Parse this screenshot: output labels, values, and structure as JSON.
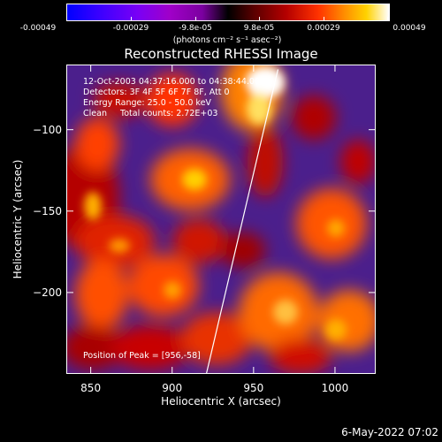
{
  "colorbar": {
    "ticks": [
      "-0.00049",
      "-0.00029",
      "-9.8e-05",
      "9.8e-05",
      "0.00029",
      "0.00049"
    ],
    "units": "(photons cm⁻² s⁻¹ asec⁻²)"
  },
  "chart_data": {
    "type": "heatmap",
    "title": "Reconstructed RHESSI Image",
    "xlabel": "Heliocentric X (arcsec)",
    "ylabel": "Heliocentric Y (arcsec)",
    "xlim": [
      835,
      1025
    ],
    "ylim": [
      -250,
      -60
    ],
    "xticks": [
      "850",
      "900",
      "950",
      "1000"
    ],
    "yticks": [
      "−100",
      "−150",
      "−200"
    ],
    "xtick_values": [
      850,
      900,
      950,
      1000
    ],
    "ytick_values": [
      -100,
      -150,
      -200
    ],
    "colorscale_range": [
      -0.00049,
      0.00049
    ],
    "limb_line": [
      [
        921,
        -250
      ],
      [
        965,
        -63
      ]
    ],
    "peak": [
      956,
      -58
    ]
  },
  "info": {
    "line1": "12-Oct-2003 04:37:16.000 to 04:38:44.000",
    "line2": "Detectors: 3F 4F 5F 6F 7F 8F, Att 0",
    "line3": "Energy Range: 25.0 - 50.0 keV",
    "line4": "Clean     Total counts: 2.72E+03"
  },
  "peak_label": "Position of Peak = [956,-58]",
  "datestamp": "6-May-2022 07:02"
}
